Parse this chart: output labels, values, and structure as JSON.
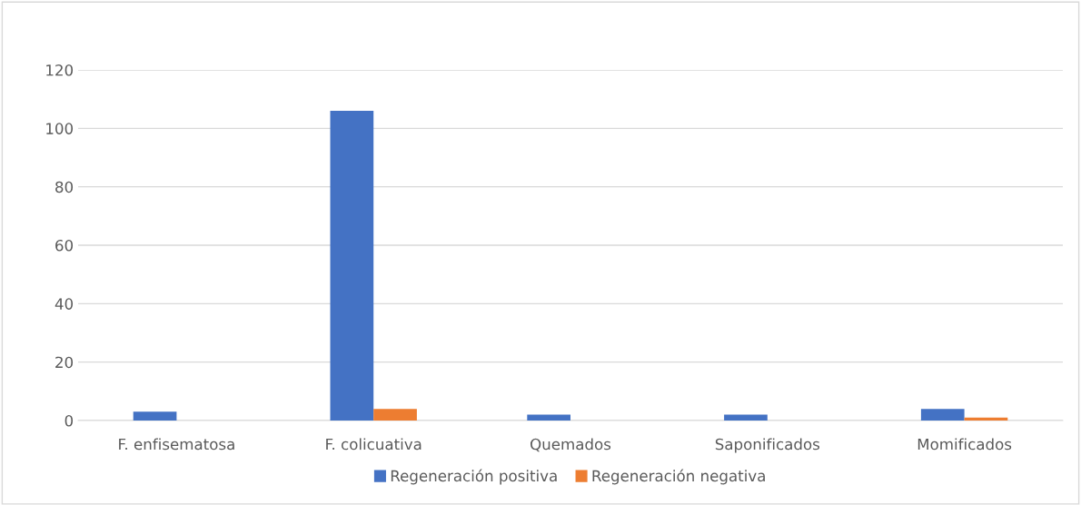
{
  "chart_data": {
    "type": "bar",
    "categories": [
      "F. enfisematosa",
      "F. colicuativa",
      "Quemados",
      "Saponificados",
      "Momificados"
    ],
    "series": [
      {
        "name": "Regeneración positiva",
        "color": "#4472c4",
        "values": [
          3,
          106,
          2,
          2,
          4
        ]
      },
      {
        "name": "Regeneración negativa",
        "color": "#ed7d31",
        "values": [
          0,
          4,
          0,
          0,
          1
        ]
      }
    ],
    "ylim": [
      0,
      120
    ],
    "yticks": [
      0,
      20,
      40,
      60,
      80,
      100,
      120
    ],
    "grid": "y",
    "legend": "bottom"
  }
}
